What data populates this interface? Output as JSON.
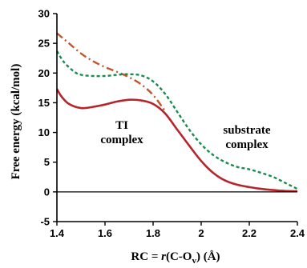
{
  "chart_data": {
    "type": "line",
    "xlabel_prefix": "RC = ",
    "xlabel_var": "r",
    "xlabel_open": "(C-O",
    "xlabel_sub": "v",
    "xlabel_close": ") (Å)",
    "ylabel": "Free energy (kcal/mol)",
    "xlim": [
      1.4,
      2.4
    ],
    "ylim": [
      -5,
      30
    ],
    "x_ticks": [
      "1.4",
      "1.6",
      "1.8",
      "2",
      "2.2",
      "2.4"
    ],
    "y_ticks": [
      "-5",
      "0",
      "5",
      "10",
      "15",
      "20",
      "25",
      "30"
    ],
    "grid": false,
    "legend": "none",
    "annotations": [
      {
        "lines": [
          "TI",
          "complex"
        ]
      },
      {
        "lines": [
          "substrate",
          "complex"
        ]
      }
    ],
    "series": [
      {
        "style": "solid",
        "color": "#b5252b",
        "x": [
          1.4,
          1.42,
          1.45,
          1.5,
          1.55,
          1.6,
          1.65,
          1.7,
          1.75,
          1.8,
          1.85,
          1.9,
          1.95,
          2.0,
          2.05,
          2.1,
          2.15,
          2.2,
          2.25,
          2.3,
          2.35,
          2.4
        ],
        "y": [
          17.3,
          16.0,
          14.8,
          14.1,
          14.3,
          14.7,
          15.2,
          15.5,
          15.4,
          14.8,
          13.2,
          10.5,
          7.8,
          5.2,
          3.2,
          1.9,
          1.2,
          0.8,
          0.5,
          0.3,
          0.15,
          0.1
        ]
      },
      {
        "style": "dashdot",
        "color": "#c0562a",
        "x": [
          1.4,
          1.45,
          1.5,
          1.55,
          1.6,
          1.65,
          1.7,
          1.75,
          1.8,
          1.85
        ],
        "y": [
          26.7,
          25.0,
          23.3,
          22.0,
          21.0,
          20.2,
          19.3,
          18.1,
          16.3,
          13.6
        ]
      },
      {
        "style": "dotted",
        "color": "#1a8a4e",
        "x": [
          1.4,
          1.43,
          1.47,
          1.5,
          1.55,
          1.6,
          1.65,
          1.7,
          1.75,
          1.8,
          1.85,
          1.9,
          1.95,
          2.0,
          2.05,
          2.1,
          2.15,
          2.2,
          2.25,
          2.3,
          2.35,
          2.4
        ],
        "y": [
          23.7,
          21.8,
          20.3,
          19.7,
          19.5,
          19.5,
          19.7,
          19.8,
          19.6,
          18.6,
          16.5,
          13.5,
          10.5,
          8.0,
          6.2,
          5.0,
          4.2,
          3.8,
          3.2,
          2.5,
          1.5,
          0.5
        ]
      }
    ]
  }
}
